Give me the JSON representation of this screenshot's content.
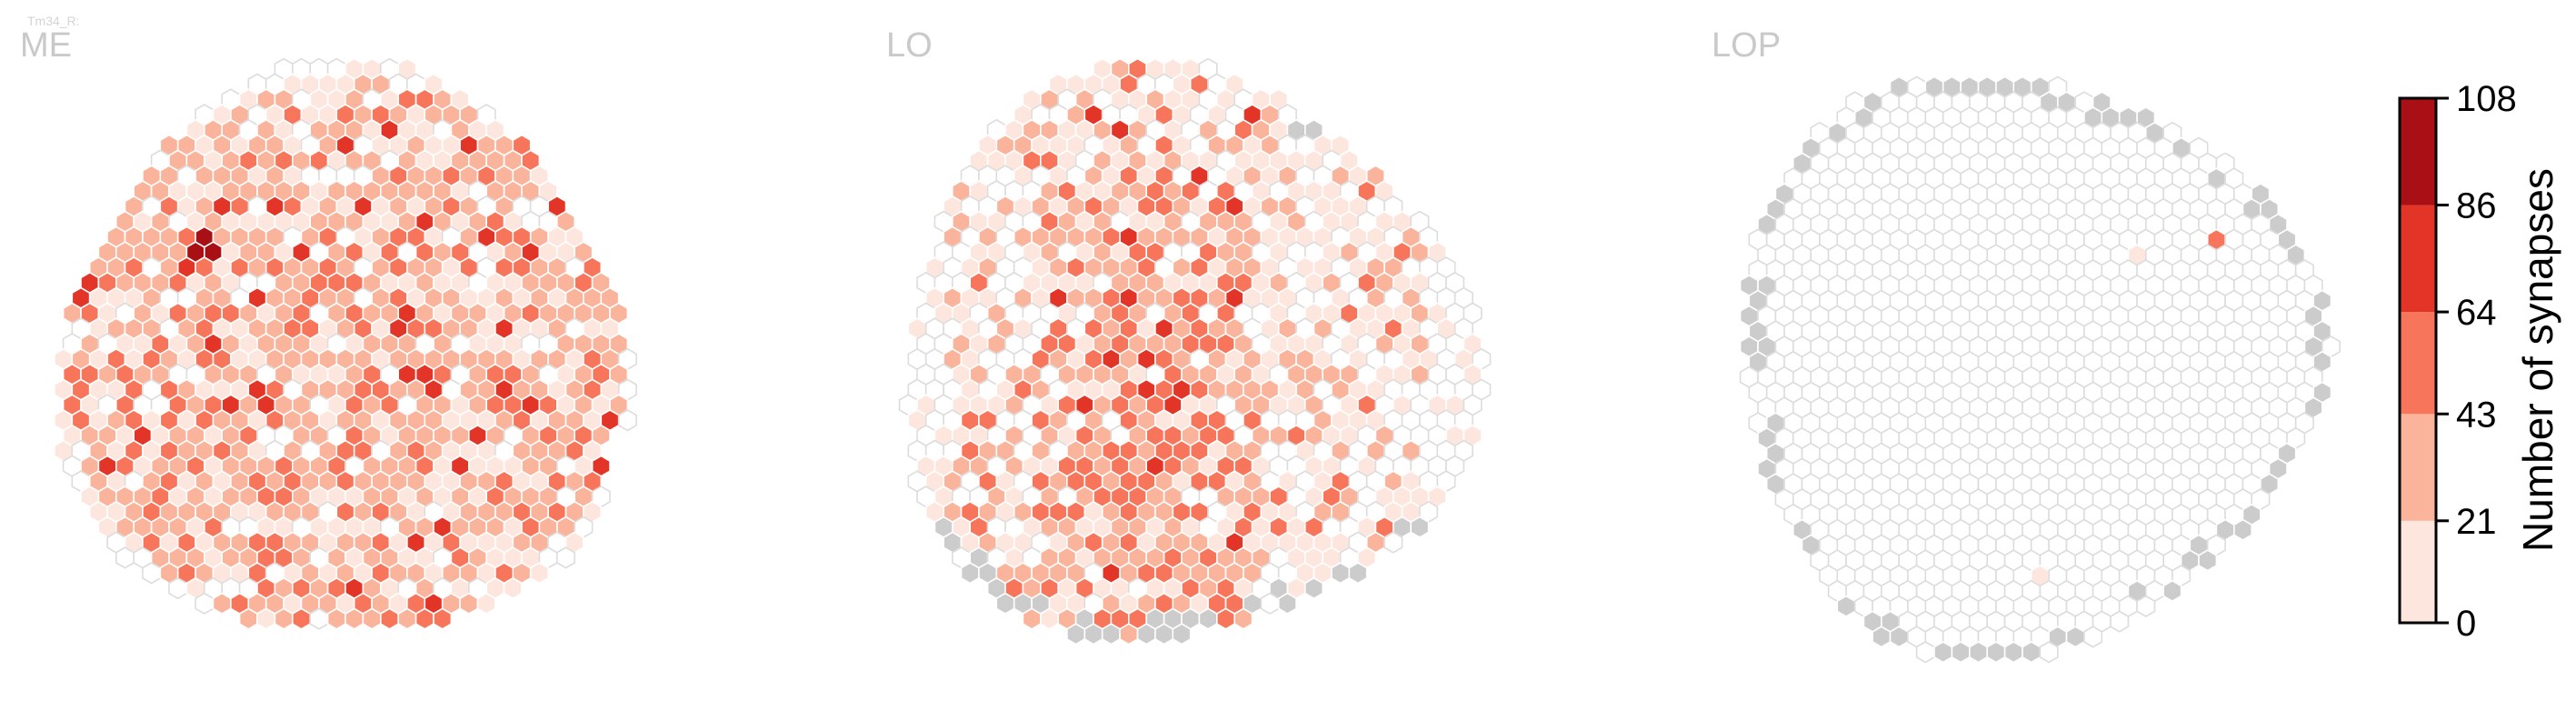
{
  "chart_data": {
    "type": "heatmap",
    "subtype": "hexagonal eye map",
    "cell_type_label": "Tm34_R:",
    "colorbar": {
      "label": "Number of synapses",
      "ticks": [
        "0",
        "21",
        "43",
        "64",
        "86",
        "108"
      ],
      "tick_values": [
        0,
        21,
        43,
        64,
        86,
        108
      ],
      "bin_colors": [
        "#fde6dd",
        "#fbb49c",
        "#f7755a",
        "#e33428",
        "#a81016"
      ]
    },
    "colors": {
      "no_synapses_outline": "#dcdcdc",
      "no_column_fill": "#cccccc",
      "hex_edge": "#ffffff"
    },
    "panels": [
      {
        "title": "ME",
        "approx_columns_with_synapses": 700,
        "approx_empty_columns": 90,
        "approx_gray_columns": 0,
        "max_synapses": 108,
        "density_description": "most columns 21–64, scattered 64–86, one hotspot 86–108"
      },
      {
        "title": "LO",
        "approx_columns_with_synapses": 560,
        "approx_empty_columns": 230,
        "approx_gray_columns": 20,
        "max_synapses": 100,
        "density_description": "dense band in center-left, sparse on right and edges"
      },
      {
        "title": "LOP",
        "approx_columns_with_synapses": 3,
        "approx_empty_columns": 780,
        "approx_gray_columns": 60,
        "max_synapses": 64,
        "density_description": "nearly all columns empty; three small patches"
      }
    ]
  }
}
